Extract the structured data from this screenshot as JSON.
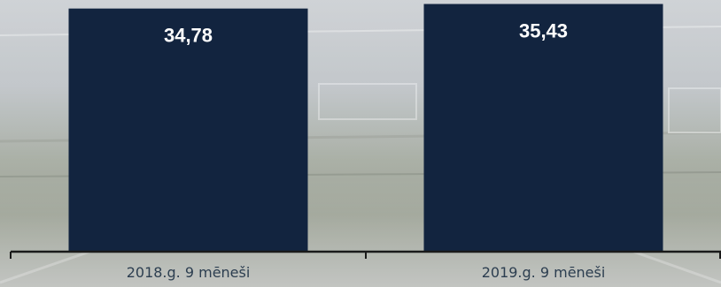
{
  "chart_data": {
    "type": "bar",
    "categories": [
      "2018.g. 9 mēneši",
      "2019.g. 9 mēneši"
    ],
    "values": [
      34.78,
      35.43
    ],
    "value_labels": [
      "34,78",
      "35,43"
    ],
    "title": "",
    "xlabel": "",
    "ylabel": "",
    "ylim": [
      0,
      36
    ],
    "grid": false,
    "legend": "none",
    "colors": {
      "bar": "#12243f",
      "axis": "#1a1a1a",
      "label": "#ffffff",
      "category": "#2c3e50"
    }
  }
}
